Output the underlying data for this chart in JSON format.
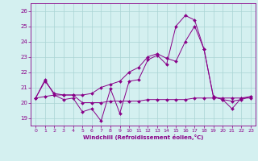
{
  "xlabel": "Windchill (Refroidissement éolien,°C)",
  "xlim": [
    -0.5,
    23.5
  ],
  "ylim": [
    18.5,
    26.5
  ],
  "yticks": [
    19,
    20,
    21,
    22,
    23,
    24,
    25,
    26
  ],
  "xticks": [
    0,
    1,
    2,
    3,
    4,
    5,
    6,
    7,
    8,
    9,
    10,
    11,
    12,
    13,
    14,
    15,
    16,
    17,
    18,
    19,
    20,
    21,
    22,
    23
  ],
  "background_color": "#d4f0f0",
  "grid_color": "#aad4d4",
  "line_color": "#880088",
  "series1_x": [
    0,
    1,
    2,
    3,
    4,
    5,
    6,
    7,
    8,
    9,
    10,
    11,
    12,
    13,
    14,
    15,
    16,
    17,
    18,
    19,
    20,
    21,
    22,
    23
  ],
  "series1_y": [
    20.3,
    21.5,
    20.5,
    20.2,
    20.3,
    19.4,
    19.6,
    18.8,
    20.9,
    19.3,
    21.4,
    21.5,
    22.8,
    23.1,
    22.5,
    25.0,
    25.7,
    25.4,
    23.5,
    20.4,
    20.2,
    19.6,
    20.3,
    20.4
  ],
  "series2_x": [
    0,
    1,
    2,
    3,
    4,
    5,
    6,
    7,
    8,
    9,
    10,
    11,
    12,
    13,
    14,
    15,
    16,
    17,
    18,
    19,
    20,
    21,
    22,
    23
  ],
  "series2_y": [
    20.3,
    21.4,
    20.6,
    20.5,
    20.5,
    20.5,
    20.6,
    21.0,
    21.2,
    21.4,
    22.0,
    22.3,
    23.0,
    23.2,
    22.9,
    22.7,
    24.0,
    25.0,
    23.5,
    20.4,
    20.2,
    20.1,
    20.2,
    20.4
  ],
  "series3_x": [
    0,
    1,
    2,
    3,
    4,
    5,
    6,
    7,
    8,
    9,
    10,
    11,
    12,
    13,
    14,
    15,
    16,
    17,
    18,
    19,
    20,
    21,
    22,
    23
  ],
  "series3_y": [
    20.3,
    20.4,
    20.5,
    20.5,
    20.5,
    20.0,
    20.0,
    20.0,
    20.1,
    20.1,
    20.1,
    20.1,
    20.2,
    20.2,
    20.2,
    20.2,
    20.2,
    20.3,
    20.3,
    20.3,
    20.3,
    20.3,
    20.3,
    20.3
  ]
}
